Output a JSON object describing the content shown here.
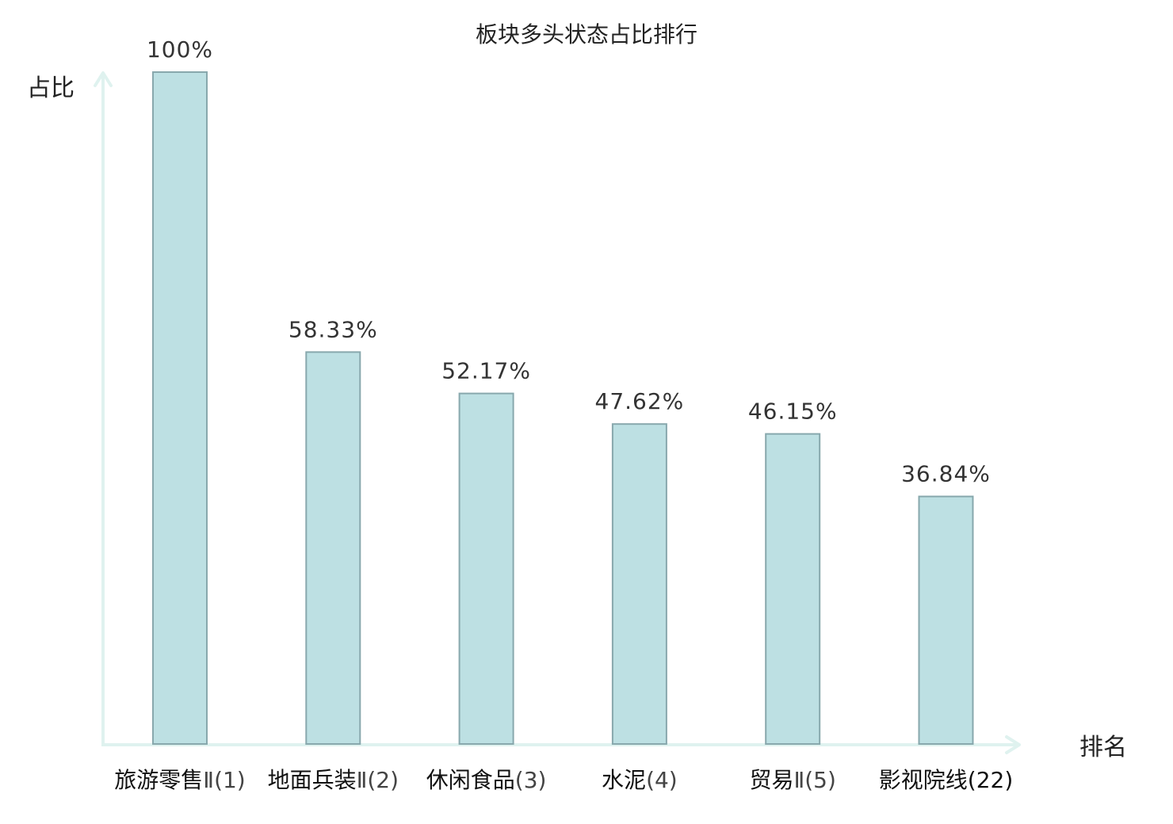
{
  "chart_data": {
    "type": "bar",
    "title": "板块多头状态占比排行",
    "ylabel": "占比",
    "xlabel": "排名",
    "ylim": [
      0,
      100
    ],
    "grid": false,
    "categories": [
      {
        "name": "旅游零售",
        "rank": "Ⅱ(1)",
        "highlight": false
      },
      {
        "name": "地面兵装",
        "rank": "Ⅱ(2)",
        "highlight": false
      },
      {
        "name": "休闲食品",
        "rank": "(3)",
        "highlight": false
      },
      {
        "name": "水泥",
        "rank": "(4)",
        "highlight": false
      },
      {
        "name": "贸易",
        "rank": "Ⅱ(5)",
        "highlight": false
      },
      {
        "name": "影视院线",
        "rank": "(22)",
        "highlight": true
      }
    ],
    "values": [
      100,
      58.33,
      52.17,
      47.62,
      46.15,
      36.84
    ],
    "labels": [
      "100%",
      "58.33%",
      "52.17%",
      "47.62%",
      "46.15%",
      "36.84%"
    ]
  },
  "colors": {
    "bar_fill": "#bde0e3",
    "bar_stroke": "#88a8ad",
    "axis": "#dff2ef",
    "highlight_text": "#e0121b",
    "text": "#222222"
  }
}
